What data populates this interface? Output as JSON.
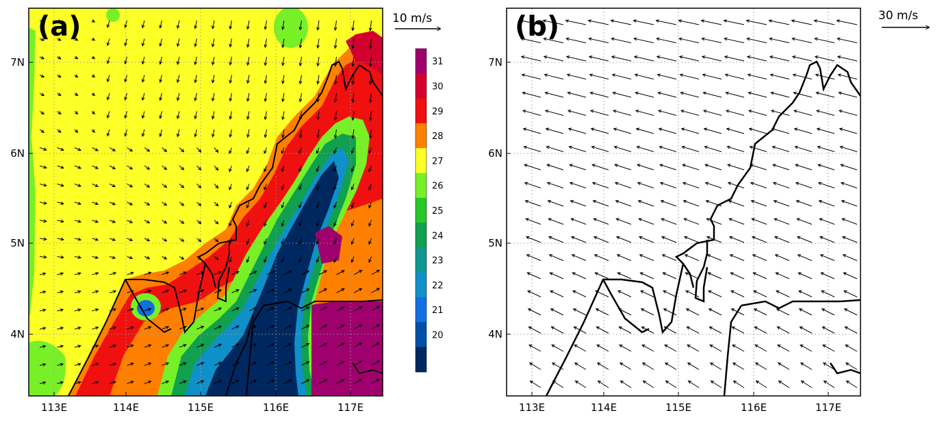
{
  "panels": [
    {
      "label": "(a)",
      "scale_label": "10 m/s",
      "colorbar_ticks": [
        "31",
        "30",
        "29",
        "28",
        "27",
        "26",
        "25",
        "24",
        "23",
        "22",
        "21",
        "20"
      ],
      "colorbar_colors": [
        "#a0006e",
        "#d3002e",
        "#f01010",
        "#ff8000",
        "#ffff28",
        "#78f028",
        "#28c828",
        "#10a050",
        "#109890",
        "#1090c8",
        "#1070e0",
        "#0050a8",
        "#002860"
      ]
    },
    {
      "label": "(b)",
      "scale_label": "30 m/s"
    }
  ],
  "axes": {
    "x_ticks": [
      "113E",
      "114E",
      "115E",
      "116E",
      "117E"
    ],
    "y_ticks": [
      "7N",
      "6N",
      "5N",
      "4N"
    ]
  }
}
